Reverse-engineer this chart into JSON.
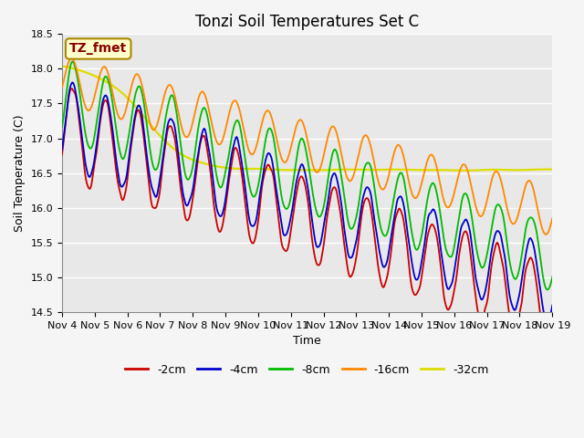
{
  "title": "Tonzi Soil Temperatures Set C",
  "xlabel": "Time",
  "ylabel": "Soil Temperature (C)",
  "ylim": [
    14.5,
    18.5
  ],
  "xlim_days": [
    0,
    15
  ],
  "x_tick_labels": [
    "Nov 4",
    "Nov 5",
    "Nov 6",
    "Nov 7",
    "Nov 8",
    "Nov 9",
    "Nov 10",
    "Nov 11",
    "Nov 12",
    "Nov 13",
    "Nov 14",
    "Nov 15",
    "Nov 16",
    "Nov 17",
    "Nov 18",
    "Nov 19"
  ],
  "legend_labels": [
    "-2cm",
    "-4cm",
    "-8cm",
    "-16cm",
    "-32cm"
  ],
  "colors": [
    "#cc0000",
    "#0000cc",
    "#00bb00",
    "#ff8800",
    "#dddd00"
  ],
  "annotation_text": "TZ_fmet",
  "annotation_color": "#880000",
  "annotation_bg": "#ffffcc",
  "annotation_edge": "#aa8800",
  "bg_color": "#e8e8e8",
  "grid_color": "#ffffff",
  "title_fontsize": 12,
  "label_fontsize": 9,
  "tick_fontsize": 8,
  "legend_fontsize": 9
}
